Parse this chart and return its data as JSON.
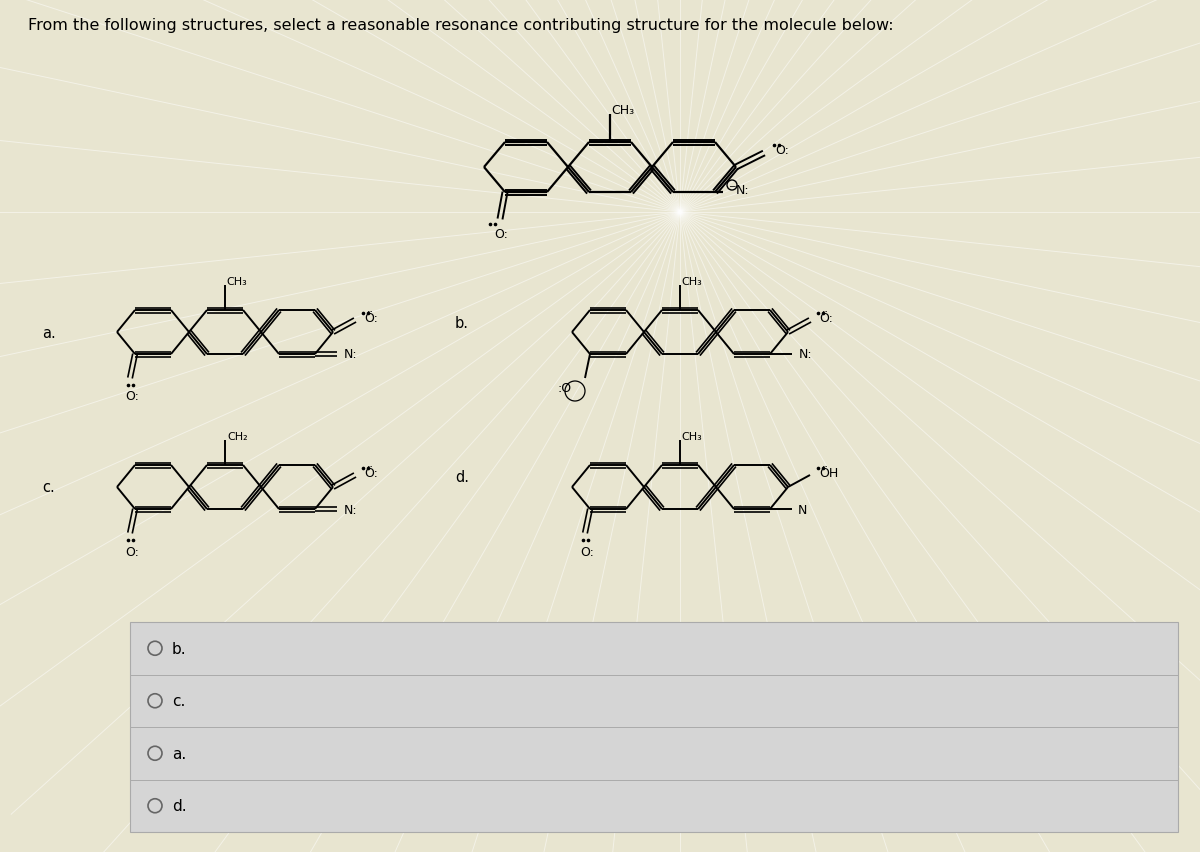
{
  "title": "From the following structures, select a reasonable resonance contributing structure for the molecule below:",
  "title_fontsize": 11.5,
  "bg_color_top": "#e8e5d0",
  "bg_color_bottom": "#d8d8d8",
  "fig_width": 12.0,
  "fig_height": 8.53,
  "answer_options": [
    "b.",
    "c.",
    "a.",
    "d."
  ],
  "radial_lines_color": "#f5f5e8",
  "radial_alpha": 0.6
}
